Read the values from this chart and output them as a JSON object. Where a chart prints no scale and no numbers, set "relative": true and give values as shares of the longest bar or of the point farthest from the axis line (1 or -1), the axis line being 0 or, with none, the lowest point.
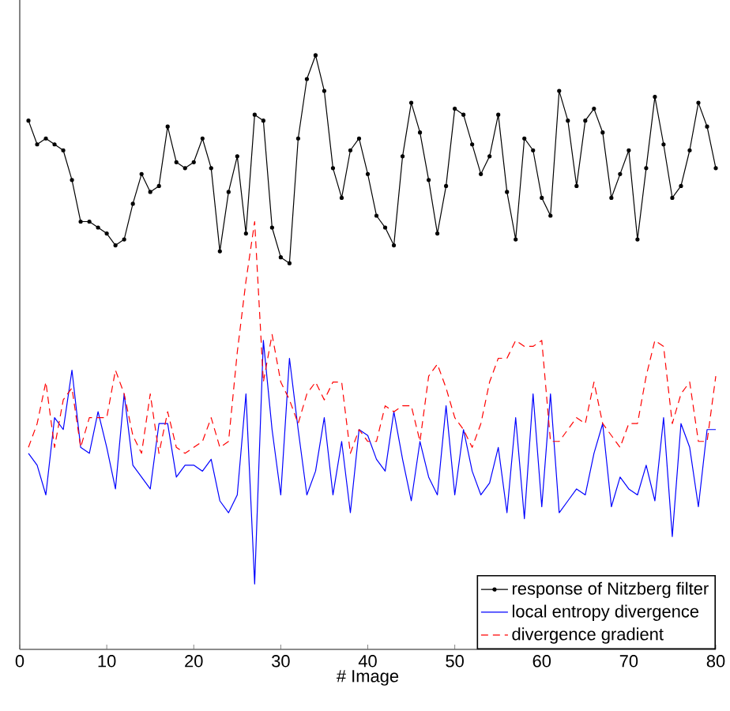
{
  "chart_data": {
    "type": "line",
    "relative": true,
    "xlabel": "# Image",
    "xlim": [
      0,
      80
    ],
    "xticks": [
      0,
      10,
      20,
      30,
      40,
      50,
      60,
      70,
      80
    ],
    "legend": "bottom right",
    "grid": false,
    "x": [
      1,
      2,
      3,
      4,
      5,
      6,
      7,
      8,
      9,
      10,
      11,
      12,
      13,
      14,
      15,
      16,
      17,
      18,
      19,
      20,
      21,
      22,
      23,
      24,
      25,
      26,
      27,
      28,
      29,
      30,
      31,
      32,
      33,
      34,
      35,
      36,
      37,
      38,
      39,
      40,
      41,
      42,
      43,
      44,
      45,
      46,
      47,
      48,
      49,
      50,
      51,
      52,
      53,
      54,
      55,
      56,
      57,
      58,
      59,
      60,
      61,
      62,
      63,
      64,
      65,
      66,
      67,
      68,
      69,
      70,
      71,
      72,
      73,
      74,
      75,
      76,
      77,
      78,
      79,
      80
    ],
    "series": [
      {
        "name": "response of Nitzberg filter",
        "color": "#000000",
        "marker": "circle",
        "line_style": "solid",
        "values": [
          0.89,
          0.85,
          0.86,
          0.85,
          0.84,
          0.79,
          0.72,
          0.72,
          0.71,
          0.7,
          0.68,
          0.69,
          0.75,
          0.8,
          0.77,
          0.78,
          0.88,
          0.82,
          0.81,
          0.82,
          0.86,
          0.81,
          0.67,
          0.77,
          0.83,
          0.7,
          0.9,
          0.89,
          0.71,
          0.66,
          0.65,
          0.86,
          0.96,
          1,
          0.94,
          0.81,
          0.76,
          0.84,
          0.86,
          0.8,
          0.73,
          0.71,
          0.68,
          0.83,
          0.92,
          0.87,
          0.79,
          0.7,
          0.78,
          0.91,
          0.9,
          0.85,
          0.8,
          0.83,
          0.9,
          0.77,
          0.69,
          0.86,
          0.84,
          0.76,
          0.73,
          0.94,
          0.89,
          0.78,
          0.89,
          0.91,
          0.87,
          0.76,
          0.8,
          0.84,
          0.69,
          0.81,
          0.93,
          0.85,
          0.76,
          0.78,
          0.84,
          0.92,
          0.88,
          0.81
        ]
      },
      {
        "name": "local entropy divergence",
        "color": "#0000ff",
        "marker": "none",
        "line_style": "solid",
        "values": [
          0.33,
          0.31,
          0.26,
          0.39,
          0.37,
          0.47,
          0.34,
          0.33,
          0.4,
          0.34,
          0.27,
          0.43,
          0.31,
          0.29,
          0.27,
          0.38,
          0.38,
          0.29,
          0.31,
          0.31,
          0.3,
          0.32,
          0.25,
          0.23,
          0.26,
          0.43,
          0.11,
          0.52,
          0.37,
          0.26,
          0.49,
          0.37,
          0.26,
          0.3,
          0.39,
          0.26,
          0.35,
          0.23,
          0.37,
          0.36,
          0.32,
          0.3,
          0.4,
          0.32,
          0.25,
          0.35,
          0.29,
          0.26,
          0.41,
          0.26,
          0.37,
          0.3,
          0.26,
          0.28,
          0.34,
          0.23,
          0.39,
          0.22,
          0.43,
          0.24,
          0.43,
          0.23,
          0.25,
          0.27,
          0.26,
          0.33,
          0.38,
          0.24,
          0.29,
          0.27,
          0.26,
          0.31,
          0.25,
          0.39,
          0.19,
          0.38,
          0.34,
          0.24,
          0.37,
          0.37
        ]
      },
      {
        "name": "divergence gradient",
        "color": "#ff0000",
        "marker": "none",
        "line_style": "dashed",
        "values": [
          0.34,
          0.38,
          0.45,
          0.34,
          0.42,
          0.44,
          0.34,
          0.39,
          0.39,
          0.39,
          0.47,
          0.43,
          0.36,
          0.33,
          0.43,
          0.33,
          0.4,
          0.34,
          0.33,
          0.34,
          0.35,
          0.39,
          0.34,
          0.35,
          0.5,
          0.62,
          0.72,
          0.45,
          0.53,
          0.45,
          0.42,
          0.38,
          0.43,
          0.45,
          0.42,
          0.45,
          0.45,
          0.33,
          0.37,
          0.35,
          0.35,
          0.41,
          0.4,
          0.41,
          0.41,
          0.35,
          0.46,
          0.48,
          0.44,
          0.39,
          0.37,
          0.34,
          0.38,
          0.45,
          0.49,
          0.49,
          0.52,
          0.51,
          0.51,
          0.52,
          0.35,
          0.35,
          0.37,
          0.39,
          0.38,
          0.45,
          0.38,
          0.36,
          0.34,
          0.38,
          0.38,
          0.46,
          0.52,
          0.51,
          0.38,
          0.43,
          0.45,
          0.35,
          0.35,
          0.46
        ]
      }
    ]
  }
}
